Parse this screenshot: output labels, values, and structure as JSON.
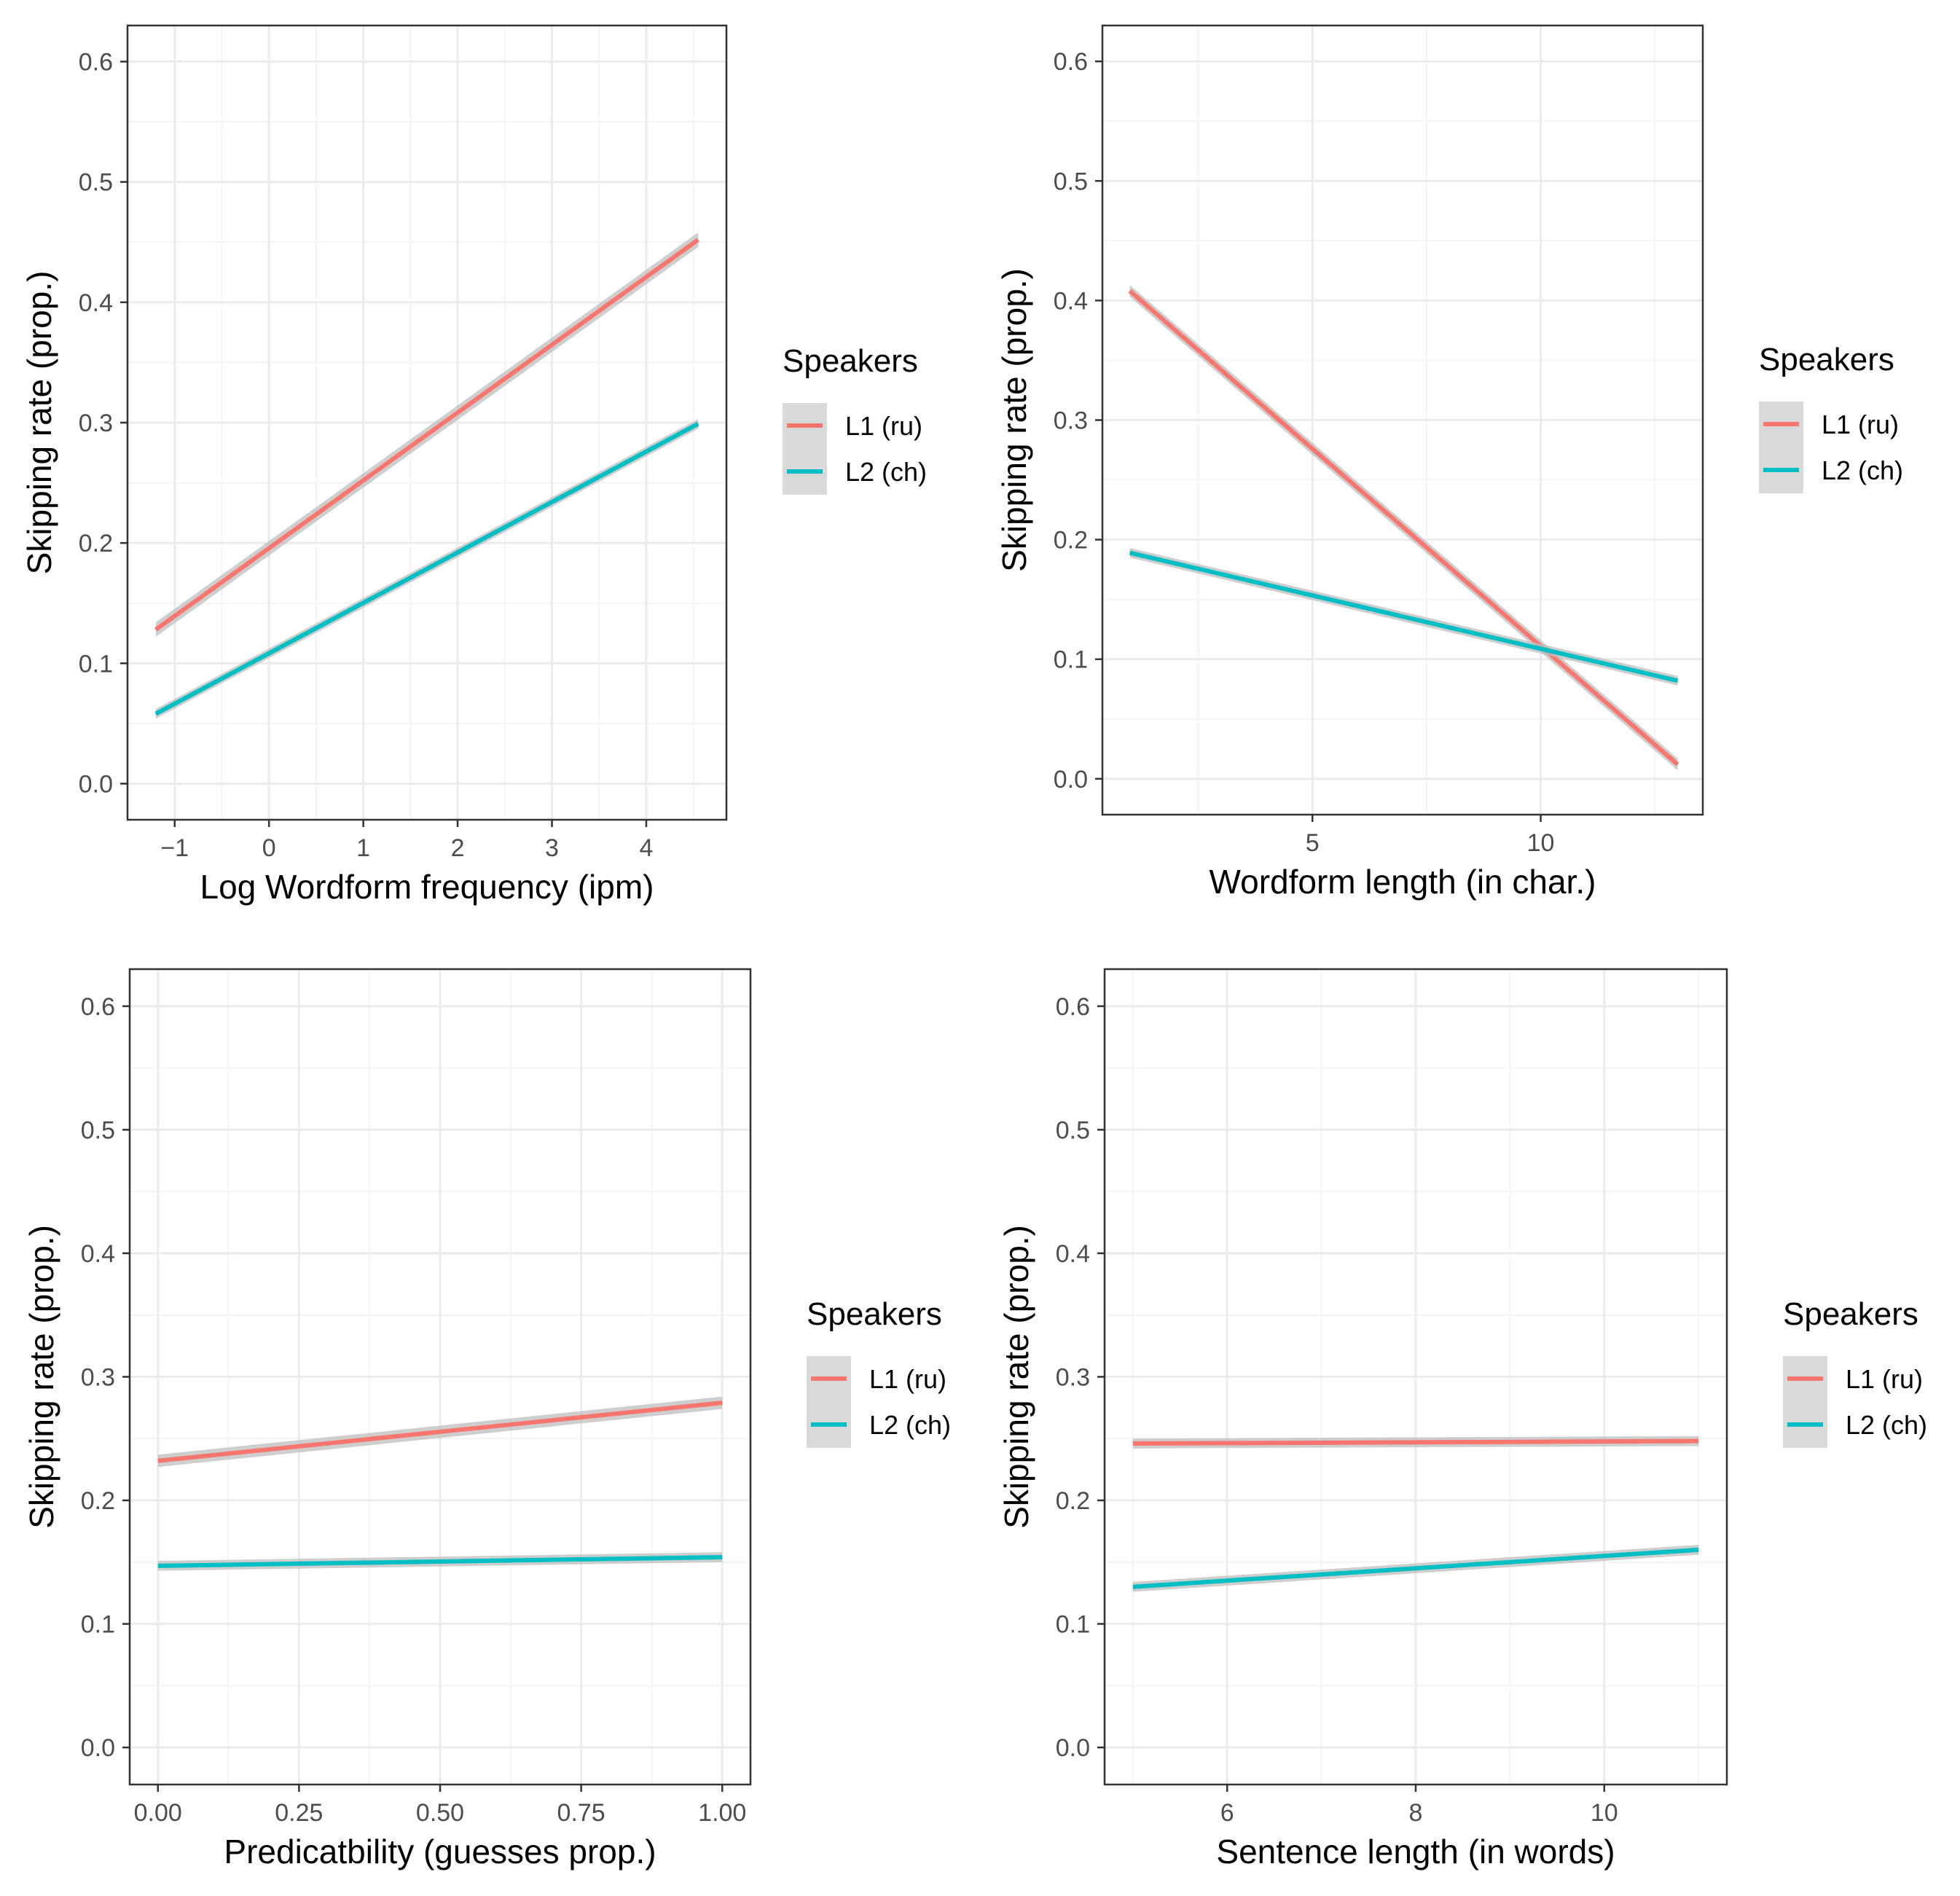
{
  "colors": {
    "l1": "#F8766D",
    "l2": "#00BFC4",
    "ribbon": "#bdbdbd",
    "grid_major": "#ebebeb",
    "grid_minor": "#f4f4f4",
    "panel_border": "#333333",
    "legend_key_bg": "#d9d9d9"
  },
  "chart_data": [
    {
      "type": "line",
      "xlabel": "Log Wordform frequency (ipm)",
      "ylabel": "Skipping rate (prop.)",
      "xlim": [
        -1.5,
        4.85
      ],
      "ylim": [
        -0.03,
        0.63
      ],
      "x_ticks": [
        -1,
        0,
        1,
        2,
        3,
        4
      ],
      "x_tick_labels": [
        "−1",
        "0",
        "1",
        "2",
        "3",
        "4"
      ],
      "y_ticks": [
        0.0,
        0.1,
        0.2,
        0.3,
        0.4,
        0.5,
        0.6
      ],
      "y_tick_labels": [
        "0.0",
        "0.1",
        "0.2",
        "0.3",
        "0.4",
        "0.5",
        "0.6"
      ],
      "legend_title": "Speakers",
      "series": [
        {
          "name": "L1 (ru)",
          "color_key": "l1",
          "x": [
            -1.2,
            4.55
          ],
          "y": [
            0.128,
            0.452
          ],
          "se": 0.006
        },
        {
          "name": "L2 (ch)",
          "color_key": "l2",
          "x": [
            -1.2,
            4.55
          ],
          "y": [
            0.058,
            0.299
          ],
          "se": 0.004
        }
      ]
    },
    {
      "type": "line",
      "xlabel": "Wordform length (in char.)",
      "ylabel": "Skipping rate (prop.)",
      "xlim": [
        0.4,
        13.55
      ],
      "ylim": [
        -0.03,
        0.63
      ],
      "x_ticks": [
        5,
        10
      ],
      "x_tick_labels": [
        "5",
        "10"
      ],
      "y_ticks": [
        0.0,
        0.1,
        0.2,
        0.3,
        0.4,
        0.5,
        0.6
      ],
      "y_tick_labels": [
        "0.0",
        "0.1",
        "0.2",
        "0.3",
        "0.4",
        "0.5",
        "0.6"
      ],
      "legend_title": "Speakers",
      "series": [
        {
          "name": "L1 (ru)",
          "color_key": "l1",
          "x": [
            1,
            13
          ],
          "y": [
            0.408,
            0.012
          ],
          "se": 0.005
        },
        {
          "name": "L2 (ch)",
          "color_key": "l2",
          "x": [
            1,
            13
          ],
          "y": [
            0.189,
            0.082
          ],
          "se": 0.004
        }
      ]
    },
    {
      "type": "line",
      "xlabel": "Predicatbility (guesses prop.)",
      "ylabel": "Skipping rate (prop.)",
      "xlim": [
        -0.05,
        1.05
      ],
      "ylim": [
        -0.03,
        0.63
      ],
      "x_ticks": [
        0.0,
        0.25,
        0.5,
        0.75,
        1.0
      ],
      "x_tick_labels": [
        "0.00",
        "0.25",
        "0.50",
        "0.75",
        "1.00"
      ],
      "y_ticks": [
        0.0,
        0.1,
        0.2,
        0.3,
        0.4,
        0.5,
        0.6
      ],
      "y_tick_labels": [
        "0.0",
        "0.1",
        "0.2",
        "0.3",
        "0.4",
        "0.5",
        "0.6"
      ],
      "legend_title": "Speakers",
      "series": [
        {
          "name": "L1 (ru)",
          "color_key": "l1",
          "x": [
            0,
            1
          ],
          "y": [
            0.232,
            0.279
          ],
          "se": 0.005
        },
        {
          "name": "L2 (ch)",
          "color_key": "l2",
          "x": [
            0,
            1
          ],
          "y": [
            0.147,
            0.154
          ],
          "se": 0.004
        }
      ]
    },
    {
      "type": "line",
      "xlabel": "Sentence length (in words)",
      "ylabel": "Skipping rate (prop.)",
      "xlim": [
        4.7,
        11.3
      ],
      "ylim": [
        -0.03,
        0.63
      ],
      "x_ticks": [
        6,
        8,
        10
      ],
      "x_tick_labels": [
        "6",
        "8",
        "10"
      ],
      "y_ticks": [
        0.0,
        0.1,
        0.2,
        0.3,
        0.4,
        0.5,
        0.6
      ],
      "y_tick_labels": [
        "0.0",
        "0.1",
        "0.2",
        "0.3",
        "0.4",
        "0.5",
        "0.6"
      ],
      "legend_title": "Speakers",
      "series": [
        {
          "name": "L1 (ru)",
          "color_key": "l1",
          "x": [
            5,
            11
          ],
          "y": [
            0.246,
            0.248
          ],
          "se": 0.004
        },
        {
          "name": "L2 (ch)",
          "color_key": "l2",
          "x": [
            5,
            11
          ],
          "y": [
            0.13,
            0.16
          ],
          "se": 0.004
        }
      ]
    }
  ]
}
